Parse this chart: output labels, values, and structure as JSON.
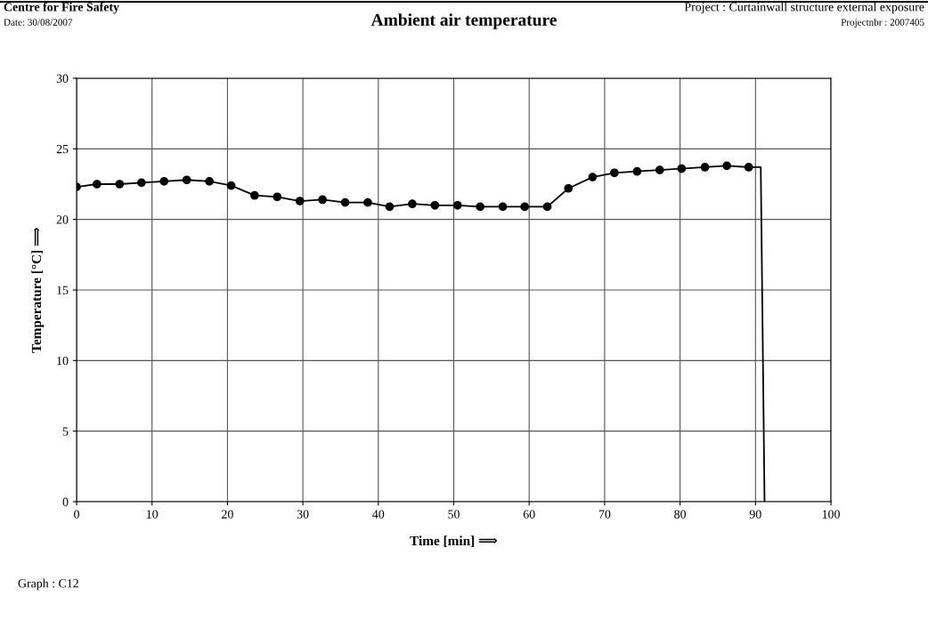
{
  "chart_data": {
    "type": "line",
    "title": "Ambient air temperature",
    "xlabel": "Time [min] ⟹",
    "ylabel": "Temperature [°C] ⟹",
    "annotations": [
      "Centre for Fire Safety",
      "Date: 30/08/2007",
      "Project : Curtainwall structure external exposure",
      "Projectnbr : 2007405",
      "Graph : C12"
    ],
    "series": [
      {
        "color": "#000000",
        "marker": "circle",
        "x": [
          0,
          2.7,
          5.7,
          8.6,
          11.6,
          14.6,
          17.6,
          20.5,
          23.6,
          26.6,
          29.6,
          32.6,
          35.6,
          38.6,
          41.5,
          44.5,
          47.5,
          50.5,
          53.5,
          56.5,
          59.4,
          62.4,
          65.2,
          68.4,
          71.3,
          74.3,
          77.3,
          80.2,
          83.3,
          86.2,
          89.1
        ],
        "values": [
          22.3,
          22.5,
          22.5,
          22.6,
          22.7,
          22.8,
          22.7,
          22.4,
          21.7,
          21.6,
          21.3,
          21.4,
          21.2,
          21.2,
          20.9,
          21.1,
          21.0,
          21.0,
          20.9,
          20.9,
          20.9,
          20.9,
          22.2,
          23.0,
          23.3,
          23.4,
          23.5,
          23.6,
          23.7,
          23.8,
          23.7
        ]
      },
      {
        "color": "#000000",
        "marker": "none",
        "x": [
          89.1,
          90.7,
          91.2
        ],
        "values": [
          23.7,
          23.7,
          0
        ]
      }
    ],
    "xlim": [
      0,
      100
    ],
    "xticks": [
      0,
      10,
      20,
      30,
      40,
      50,
      60,
      70,
      80,
      90,
      100
    ],
    "ylim": [
      0,
      30
    ],
    "yticks": [
      0,
      5,
      10,
      15,
      20,
      25,
      30
    ],
    "grid": true,
    "legend": false,
    "line_style": "solid"
  }
}
